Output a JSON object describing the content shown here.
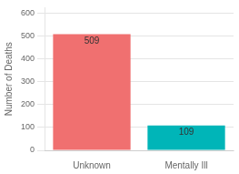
{
  "chart_data": {
    "type": "bar",
    "categories": [
      "Unknown",
      "Mentally Ill"
    ],
    "values": [
      509,
      109
    ],
    "colors": [
      "#F07070",
      "#00B5B8"
    ],
    "ylabel": "Number of Deaths",
    "ylim": [
      0,
      625
    ],
    "yticks": [
      0,
      100,
      200,
      300,
      400,
      500,
      600
    ],
    "grid": true,
    "data_labels": true
  }
}
